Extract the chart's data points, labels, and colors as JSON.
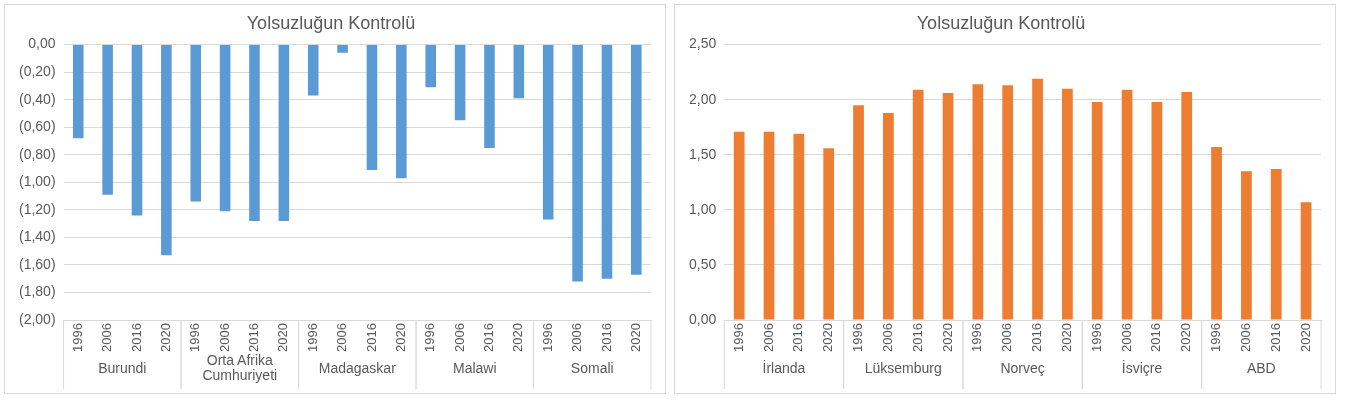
{
  "chart_data": [
    {
      "type": "bar",
      "title": "Yolsuzluğun Kontrolü",
      "categories": [
        "1996",
        "2006",
        "2016",
        "2020",
        "1996",
        "2006",
        "2016",
        "2020",
        "1996",
        "2006",
        "2016",
        "2020",
        "1996",
        "2006",
        "2016",
        "2020",
        "1996",
        "2006",
        "2016",
        "2020"
      ],
      "values": [
        -0.68,
        -1.09,
        -1.24,
        -1.53,
        -1.14,
        -1.21,
        -1.28,
        -1.28,
        -0.37,
        -0.06,
        -0.91,
        -0.97,
        -0.31,
        -0.55,
        -0.75,
        -0.39,
        -1.27,
        -1.72,
        -1.7,
        -1.67
      ],
      "color": "#5b9bd5",
      "ylim": [
        -2,
        0
      ],
      "yticks": [
        {
          "value": 0,
          "label": "0,00"
        },
        {
          "value": -0.2,
          "label": "(0,20)"
        },
        {
          "value": -0.4,
          "label": "(0,40)"
        },
        {
          "value": -0.6,
          "label": "(0,60)"
        },
        {
          "value": -0.8,
          "label": "(0,80)"
        },
        {
          "value": -1,
          "label": "(1,00)"
        },
        {
          "value": -1.2,
          "label": "(1,20)"
        },
        {
          "value": -1.4,
          "label": "(1,40)"
        },
        {
          "value": -1.6,
          "label": "(1,60)"
        },
        {
          "value": -1.8,
          "label": "(1,80)"
        },
        {
          "value": -2,
          "label": "(2,00)"
        }
      ],
      "annotations": [
        "Burundi",
        "Orta Afrika Cumhuriyeti",
        "Madagaskar",
        "Malawi",
        "Somali"
      ],
      "grid": "y",
      "legend": false
    },
    {
      "type": "bar",
      "title": "Yolsuzluğun Kontrolü",
      "categories": [
        "1996",
        "2006",
        "2016",
        "2020",
        "1996",
        "2006",
        "2016",
        "2020",
        "1996",
        "2006",
        "2016",
        "2020",
        "1996",
        "2006",
        "2016",
        "2020",
        "1996",
        "2006",
        "2016",
        "2020"
      ],
      "values": [
        1.71,
        1.71,
        1.69,
        1.56,
        1.95,
        1.88,
        2.09,
        2.06,
        2.14,
        2.13,
        2.19,
        2.1,
        1.98,
        2.09,
        1.98,
        2.07,
        1.57,
        1.35,
        1.37,
        1.07
      ],
      "color": "#ed7d31",
      "ylim": [
        0,
        2.5
      ],
      "yticks": [
        {
          "value": 0,
          "label": "0,00"
        },
        {
          "value": 0.5,
          "label": "0,50"
        },
        {
          "value": 1,
          "label": "1,00"
        },
        {
          "value": 1.5,
          "label": "1,50"
        },
        {
          "value": 2,
          "label": "2,00"
        },
        {
          "value": 2.5,
          "label": "2,50"
        }
      ],
      "annotations": [
        "İrlanda",
        "Lüksemburg",
        "Norveç",
        "İsviçre",
        "ABD"
      ],
      "grid": "y",
      "legend": false
    }
  ]
}
